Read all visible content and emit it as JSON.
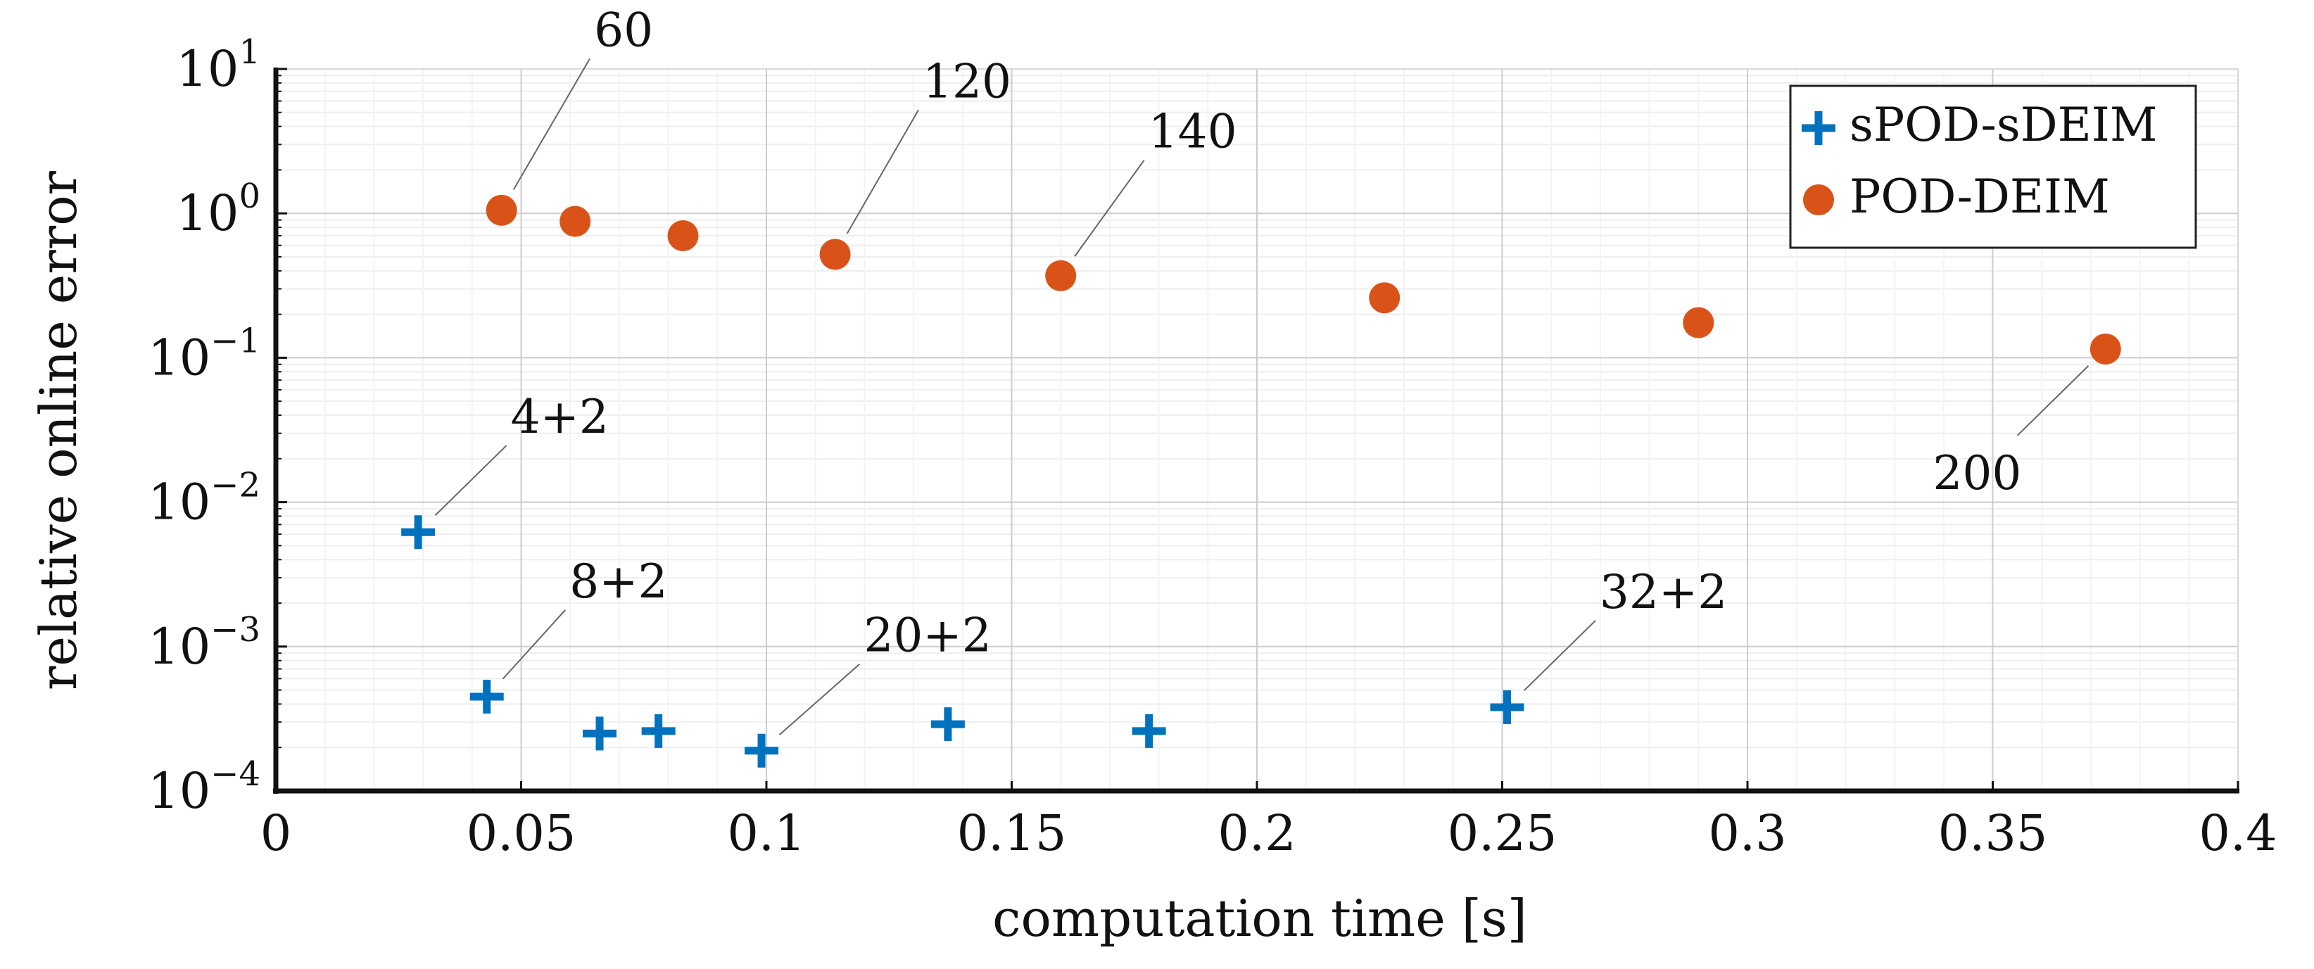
{
  "chart_data": {
    "type": "scatter",
    "xlabel": "computation time [s]",
    "ylabel": "relative online error",
    "xlim": [
      0,
      0.4
    ],
    "ylim": [
      0.0001,
      10
    ],
    "yscale": "log",
    "grid": true,
    "legend_position": "top-right",
    "x_ticks": [
      {
        "value": 0,
        "label": "0"
      },
      {
        "value": 0.05,
        "label": "0.05"
      },
      {
        "value": 0.1,
        "label": "0.1"
      },
      {
        "value": 0.15,
        "label": "0.15"
      },
      {
        "value": 0.2,
        "label": "0.2"
      },
      {
        "value": 0.25,
        "label": "0.25"
      },
      {
        "value": 0.3,
        "label": "0.3"
      },
      {
        "value": 0.35,
        "label": "0.35"
      },
      {
        "value": 0.4,
        "label": "0.4"
      }
    ],
    "y_ticks": [
      {
        "exp": 1,
        "base": "10",
        "sup": "1"
      },
      {
        "exp": 0,
        "base": "10",
        "sup": "0"
      },
      {
        "exp": -1,
        "base": "10",
        "sup": "−1"
      },
      {
        "exp": -2,
        "base": "10",
        "sup": "−2"
      },
      {
        "exp": -3,
        "base": "10",
        "sup": "−3"
      },
      {
        "exp": -4,
        "base": "10",
        "sup": "−4"
      }
    ],
    "series": [
      {
        "name": "sPOD-sDEIM",
        "marker": "plus",
        "color": "#0072bd",
        "x": [
          0.029,
          0.043,
          0.066,
          0.078,
          0.099,
          0.137,
          0.178,
          0.251
        ],
        "y": [
          0.0062,
          0.00045,
          0.00025,
          0.00026,
          0.00019,
          0.00029,
          0.00026,
          0.00038
        ]
      },
      {
        "name": "POD-DEIM",
        "marker": "circle",
        "color": "#d95319",
        "x": [
          0.046,
          0.061,
          0.083,
          0.114,
          0.16,
          0.226,
          0.29,
          0.373
        ],
        "y": [
          1.05,
          0.88,
          0.7,
          0.52,
          0.37,
          0.26,
          0.175,
          0.115
        ]
      }
    ],
    "annotations": [
      {
        "text": "60",
        "x": 0.046,
        "y": 1.05,
        "dx": 0.018,
        "ldec": 1.05,
        "side": "above-right"
      },
      {
        "text": "120",
        "x": 0.114,
        "y": 0.52,
        "dx": 0.017,
        "ldec": 1.0,
        "side": "above-right"
      },
      {
        "text": "140",
        "x": 0.16,
        "y": 0.37,
        "dx": 0.017,
        "ldec": 0.8,
        "side": "above-right"
      },
      {
        "text": "200",
        "x": 0.373,
        "y": 0.115,
        "dx": -0.018,
        "ldec": -0.6,
        "side": "below-left"
      },
      {
        "text": "4+2",
        "x": 0.029,
        "y": 0.0062,
        "dx": 0.018,
        "ldec": 0.6,
        "side": "above-right"
      },
      {
        "text": "8+2",
        "x": 0.043,
        "y": 0.00045,
        "dx": 0.016,
        "ldec": 0.6,
        "side": "above-right"
      },
      {
        "text": "20+2",
        "x": 0.099,
        "y": 0.00019,
        "dx": 0.02,
        "ldec": 0.6,
        "side": "above-right"
      },
      {
        "text": "32+2",
        "x": 0.251,
        "y": 0.00038,
        "dx": 0.018,
        "ldec": 0.6,
        "side": "above-right"
      }
    ]
  }
}
